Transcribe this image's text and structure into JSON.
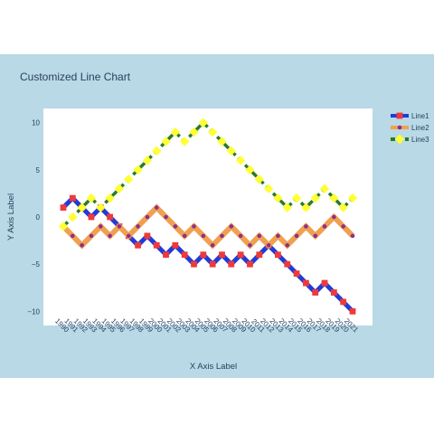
{
  "chart_data": {
    "type": "line",
    "title": "Customized Line Chart",
    "xlabel": "X Axis Label",
    "ylabel": "Y Axis Label",
    "x": [
      "1990",
      "1991",
      "1992",
      "1993",
      "1994",
      "1995",
      "1996",
      "1997",
      "1998",
      "1999",
      "2000",
      "2001",
      "2002",
      "2003",
      "2004",
      "2005",
      "2006",
      "2007",
      "2008",
      "2009",
      "2010",
      "2011",
      "2012",
      "2013",
      "2014",
      "2015",
      "2016",
      "2017",
      "2018",
      "2019",
      "2020",
      "2021"
    ],
    "ylim": [
      -11.5,
      11.5
    ],
    "yticks": [
      -10,
      -5,
      0,
      5,
      10
    ],
    "grid": false,
    "legend": "top-right",
    "colors": {
      "paper": "#b8d9e5",
      "plot": "#ffffff",
      "marker_dot": "#8b2f8b"
    },
    "series": [
      {
        "name": "Line1",
        "line_color": "#1f3bd9",
        "line_dash": "solid",
        "marker": "square",
        "marker_color": "#ee3a3a",
        "values": [
          1,
          2,
          1,
          0,
          1,
          0,
          -1,
          -2,
          -3,
          -2,
          -3,
          -4,
          -3,
          -4,
          -5,
          -4,
          -5,
          -4,
          -5,
          -4,
          -5,
          -4,
          -3,
          -4,
          -5,
          -6,
          -7,
          -8,
          -7,
          -8,
          -9,
          -10
        ]
      },
      {
        "name": "Line2",
        "line_color": "#f0a050",
        "line_dash": "solid",
        "marker": "circle",
        "marker_color": "#8b2f8b",
        "values": [
          -1,
          -2,
          -3,
          -2,
          -1,
          -2,
          -1,
          -2,
          -1,
          0,
          1,
          0,
          -1,
          -2,
          -1,
          -2,
          -3,
          -2,
          -1,
          -2,
          -3,
          -2,
          -3,
          -2,
          -3,
          -2,
          -1,
          -2,
          -1,
          0,
          -1,
          -2
        ]
      },
      {
        "name": "Line3",
        "line_color": "#2a7a2a",
        "line_dash": "dash",
        "marker": "diamond",
        "marker_color": "#ffff33",
        "values": [
          -1,
          0,
          1,
          2,
          1,
          2,
          3,
          4,
          5,
          6,
          7,
          8,
          9,
          8,
          9,
          10,
          9,
          8,
          7,
          6,
          5,
          4,
          3,
          2,
          1,
          2,
          1,
          2,
          3,
          2,
          1,
          2
        ]
      }
    ]
  }
}
